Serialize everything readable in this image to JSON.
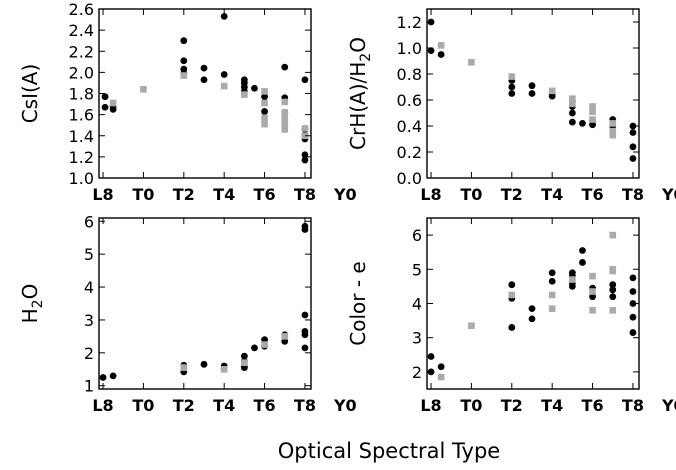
{
  "xlabel": "Optical Spectral Type",
  "chart_data": [
    {
      "type": "scatter",
      "ylabel": "CsI(A)",
      "ylim": [
        1.0,
        2.6
      ],
      "yticks": [
        "1.0",
        "1.2",
        "1.4",
        "1.6",
        "1.8",
        "2.0",
        "2.2",
        "2.4",
        "2.6"
      ],
      "xlim": [
        -0.2,
        10.3
      ],
      "xticks": [
        {
          "v": 0,
          "label": "L8"
        },
        {
          "v": 2,
          "label": "T0"
        },
        {
          "v": 4,
          "label": "T2"
        },
        {
          "v": 6,
          "label": "T4"
        },
        {
          "v": 8,
          "label": "T6"
        },
        {
          "v": 10,
          "label": "T8"
        },
        {
          "v": 12,
          "label": "Y0"
        }
      ],
      "series": [
        {
          "color": "#000000",
          "points": [
            [
              0.1,
              1.77
            ],
            [
              0.1,
              1.67
            ],
            [
              0.5,
              1.68
            ],
            [
              0.5,
              1.65
            ],
            [
              4.0,
              2.3
            ],
            [
              4.0,
              2.11
            ],
            [
              4.0,
              2.03
            ],
            [
              4.0,
              1.99
            ],
            [
              5.0,
              2.04
            ],
            [
              5.0,
              1.93
            ],
            [
              6.0,
              2.53
            ],
            [
              6.0,
              1.98
            ],
            [
              7.0,
              1.93
            ],
            [
              7.0,
              1.9
            ],
            [
              7.0,
              1.86
            ],
            [
              7.0,
              1.82
            ],
            [
              7.5,
              1.85
            ],
            [
              8.0,
              1.77
            ],
            [
              8.0,
              1.63
            ],
            [
              9.0,
              2.05
            ],
            [
              9.0,
              1.76
            ],
            [
              9.0,
              1.62
            ],
            [
              10.0,
              1.93
            ],
            [
              10.0,
              1.46
            ],
            [
              10.0,
              1.4
            ],
            [
              10.0,
              1.37
            ],
            [
              10.0,
              1.22
            ],
            [
              10.0,
              1.17
            ],
            [
              11.0,
              1.07
            ]
          ]
        },
        {
          "color": "#aaaaaa",
          "points": [
            [
              0.5,
              1.71
            ],
            [
              2.0,
              1.84
            ],
            [
              4.0,
              1.97
            ],
            [
              6.0,
              1.87
            ],
            [
              7.0,
              1.79
            ],
            [
              8.0,
              1.82
            ],
            [
              8.0,
              1.71
            ],
            [
              8.0,
              1.57
            ],
            [
              8.0,
              1.51
            ],
            [
              9.0,
              1.72
            ],
            [
              9.0,
              1.62
            ],
            [
              9.0,
              1.56
            ],
            [
              9.0,
              1.5
            ],
            [
              9.0,
              1.46
            ],
            [
              10.0,
              1.47
            ],
            [
              10.0,
              1.4
            ]
          ]
        }
      ]
    },
    {
      "type": "scatter",
      "ylabel_main": "CrH(A)/H",
      "ylabel_sub": "2",
      "ylabel_end": "O",
      "ylim": [
        0.0,
        1.3
      ],
      "yticks": [
        "0.0",
        "0.2",
        "0.4",
        "0.6",
        "0.8",
        "1.0",
        "1.2"
      ],
      "xlim": [
        -0.2,
        10.3
      ],
      "xticks": [
        {
          "v": 0,
          "label": "L8"
        },
        {
          "v": 2,
          "label": "T0"
        },
        {
          "v": 4,
          "label": "T2"
        },
        {
          "v": 6,
          "label": "T4"
        },
        {
          "v": 8,
          "label": "T6"
        },
        {
          "v": 10,
          "label": "T8"
        },
        {
          "v": 12,
          "label": "Y0"
        }
      ],
      "series": [
        {
          "color": "#000000",
          "points": [
            [
              0.0,
              1.2
            ],
            [
              0.0,
              0.98
            ],
            [
              0.5,
              0.95
            ],
            [
              4.0,
              0.75
            ],
            [
              4.0,
              0.7
            ],
            [
              4.0,
              0.65
            ],
            [
              5.0,
              0.71
            ],
            [
              5.0,
              0.65
            ],
            [
              6.0,
              0.65
            ],
            [
              6.0,
              0.63
            ],
            [
              7.0,
              0.59
            ],
            [
              7.0,
              0.55
            ],
            [
              7.0,
              0.5
            ],
            [
              7.0,
              0.43
            ],
            [
              7.5,
              0.42
            ],
            [
              8.0,
              0.44
            ],
            [
              8.0,
              0.41
            ],
            [
              9.0,
              0.45
            ],
            [
              9.0,
              0.4
            ],
            [
              10.0,
              0.4
            ],
            [
              10.0,
              0.35
            ],
            [
              10.0,
              0.24
            ],
            [
              10.0,
              0.15
            ],
            [
              11.0,
              0.16
            ]
          ]
        },
        {
          "color": "#aaaaaa",
          "points": [
            [
              0.5,
              1.02
            ],
            [
              2.0,
              0.89
            ],
            [
              4.0,
              0.78
            ],
            [
              6.0,
              0.67
            ],
            [
              7.0,
              0.61
            ],
            [
              7.0,
              0.57
            ],
            [
              8.0,
              0.55
            ],
            [
              8.0,
              0.51
            ],
            [
              8.0,
              0.45
            ],
            [
              9.0,
              0.42
            ],
            [
              9.0,
              0.36
            ],
            [
              9.0,
              0.33
            ]
          ]
        }
      ]
    },
    {
      "type": "scatter",
      "ylabel_main": "H",
      "ylabel_sub": "2",
      "ylabel_end": "O",
      "ylim": [
        0.9,
        6.1
      ],
      "yticks": [
        "1",
        "2",
        "3",
        "4",
        "5",
        "6"
      ],
      "xlim": [
        -0.2,
        10.3
      ],
      "xticks": [
        {
          "v": 0,
          "label": "L8"
        },
        {
          "v": 2,
          "label": "T0"
        },
        {
          "v": 4,
          "label": "T2"
        },
        {
          "v": 6,
          "label": "T4"
        },
        {
          "v": 8,
          "label": "T6"
        },
        {
          "v": 10,
          "label": "T8"
        },
        {
          "v": 12,
          "label": "Y0"
        }
      ],
      "series": [
        {
          "color": "#000000",
          "points": [
            [
              0.0,
              1.25
            ],
            [
              0.5,
              1.3
            ],
            [
              4.0,
              1.62
            ],
            [
              4.0,
              1.42
            ],
            [
              5.0,
              1.65
            ],
            [
              6.0,
              1.6
            ],
            [
              6.0,
              1.5
            ],
            [
              7.0,
              1.9
            ],
            [
              7.0,
              1.75
            ],
            [
              7.0,
              1.6
            ],
            [
              7.0,
              1.55
            ],
            [
              7.5,
              2.15
            ],
            [
              8.0,
              2.4
            ],
            [
              8.0,
              2.2
            ],
            [
              9.0,
              2.55
            ],
            [
              9.0,
              2.35
            ],
            [
              10.0,
              5.85
            ],
            [
              10.0,
              5.75
            ],
            [
              10.0,
              3.15
            ],
            [
              10.0,
              2.65
            ],
            [
              10.0,
              2.55
            ],
            [
              10.0,
              2.15
            ],
            [
              11.0,
              5.25
            ]
          ]
        },
        {
          "color": "#aaaaaa",
          "points": [
            [
              4.0,
              1.55
            ],
            [
              6.0,
              1.5
            ],
            [
              7.0,
              1.7
            ],
            [
              8.0,
              2.25
            ],
            [
              9.0,
              2.5
            ]
          ]
        }
      ]
    },
    {
      "type": "scatter",
      "ylabel": "Color - e",
      "ylim": [
        1.5,
        6.5
      ],
      "yticks": [
        "2",
        "3",
        "4",
        "5",
        "6"
      ],
      "xlim": [
        -0.2,
        10.3
      ],
      "xticks": [
        {
          "v": 0,
          "label": "L8"
        },
        {
          "v": 2,
          "label": "T0"
        },
        {
          "v": 4,
          "label": "T2"
        },
        {
          "v": 6,
          "label": "T4"
        },
        {
          "v": 8,
          "label": "T6"
        },
        {
          "v": 10,
          "label": "T8"
        },
        {
          "v": 12,
          "label": "Y0"
        }
      ],
      "series": [
        {
          "color": "#000000",
          "points": [
            [
              0.0,
              2.45
            ],
            [
              0.0,
              2.0
            ],
            [
              0.5,
              2.15
            ],
            [
              4.0,
              4.55
            ],
            [
              4.0,
              4.15
            ],
            [
              4.0,
              3.3
            ],
            [
              5.0,
              3.85
            ],
            [
              5.0,
              3.55
            ],
            [
              6.0,
              4.9
            ],
            [
              6.0,
              4.65
            ],
            [
              7.0,
              4.9
            ],
            [
              7.0,
              4.8
            ],
            [
              7.0,
              4.6
            ],
            [
              7.0,
              4.5
            ],
            [
              7.5,
              5.55
            ],
            [
              7.5,
              5.2
            ],
            [
              8.0,
              4.45
            ],
            [
              8.0,
              4.2
            ],
            [
              9.0,
              4.55
            ],
            [
              9.0,
              4.4
            ],
            [
              9.0,
              4.2
            ],
            [
              10.0,
              4.75
            ],
            [
              10.0,
              4.35
            ],
            [
              10.0,
              4.0
            ],
            [
              10.0,
              3.6
            ],
            [
              10.0,
              3.15
            ],
            [
              11.0,
              2.45
            ]
          ]
        },
        {
          "color": "#aaaaaa",
          "points": [
            [
              0.5,
              1.85
            ],
            [
              2.0,
              3.35
            ],
            [
              4.0,
              4.25
            ],
            [
              6.0,
              4.25
            ],
            [
              6.0,
              3.85
            ],
            [
              7.0,
              4.7
            ],
            [
              8.0,
              4.8
            ],
            [
              8.0,
              4.35
            ],
            [
              8.0,
              3.8
            ],
            [
              9.0,
              6.0
            ],
            [
              9.0,
              5.0
            ],
            [
              9.0,
              4.95
            ],
            [
              9.0,
              3.8
            ]
          ]
        }
      ]
    }
  ]
}
